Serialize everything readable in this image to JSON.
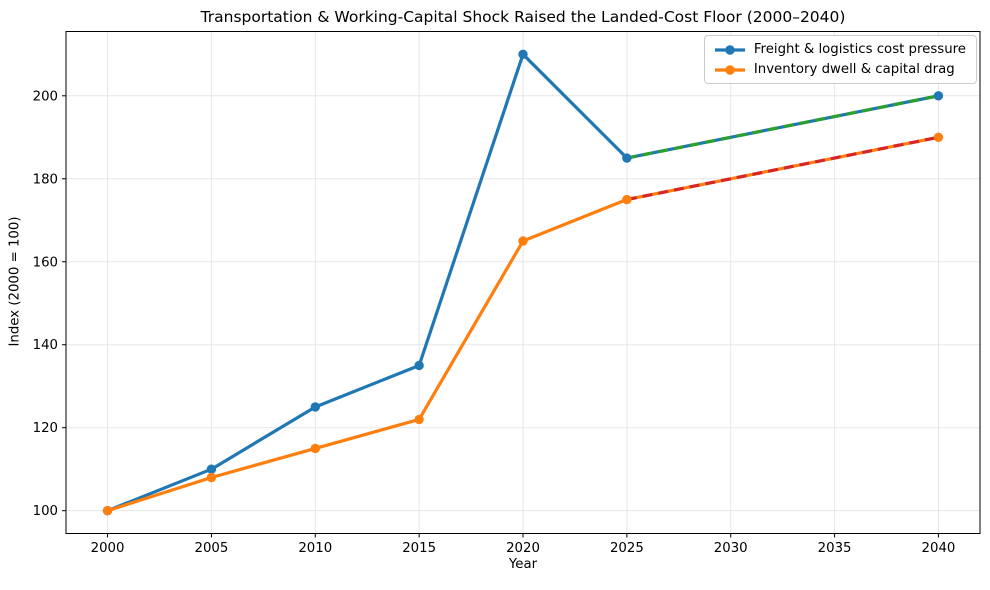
{
  "figure": {
    "background": "#ffffff"
  },
  "chart_data": {
    "type": "line",
    "title": "Transportation & Working-Capital Shock Raised the Landed-Cost Floor (2000–2040)",
    "xlabel": "Year",
    "ylabel": "Index (2000 = 100)",
    "xlim": [
      1998,
      2042
    ],
    "ylim": [
      94.5,
      215.5
    ],
    "x_ticks": [
      2000,
      2005,
      2010,
      2015,
      2020,
      2025,
      2030,
      2035,
      2040
    ],
    "y_ticks": [
      100,
      120,
      140,
      160,
      180,
      200
    ],
    "grid": true,
    "legend_position": "upper right",
    "series": [
      {
        "name": "Freight & logistics cost pressure",
        "color": "#1f77b4",
        "style": "solid",
        "marker": "circle",
        "x": [
          2000,
          2005,
          2010,
          2015,
          2020,
          2025,
          2040
        ],
        "values": [
          100,
          110,
          125,
          135,
          210,
          185,
          200
        ]
      },
      {
        "name": "Inventory dwell & capital drag",
        "color": "#ff7f0e",
        "style": "solid",
        "marker": "circle",
        "x": [
          2000,
          2005,
          2010,
          2015,
          2020,
          2025,
          2040
        ],
        "values": [
          100,
          108,
          115,
          122,
          165,
          175,
          190
        ]
      }
    ],
    "overlays": [
      {
        "name": "freight-2025-2040-dashed-overlay",
        "color": "#2ca02c",
        "style": "dashed",
        "x": [
          2025,
          2040
        ],
        "values": [
          185,
          200
        ]
      },
      {
        "name": "inventory-2025-2040-dashed-overlay",
        "color": "#d62728",
        "style": "dashed",
        "x": [
          2025,
          2040
        ],
        "values": [
          175,
          190
        ]
      }
    ],
    "colors": {
      "grid": "#e7e7e7",
      "spine": "#000000",
      "tick": "#000000"
    }
  },
  "legend": {
    "items": [
      {
        "label": "Freight & logistics cost pressure",
        "color": "#1f77b4"
      },
      {
        "label": "Inventory dwell & capital drag",
        "color": "#ff7f0e"
      }
    ]
  }
}
